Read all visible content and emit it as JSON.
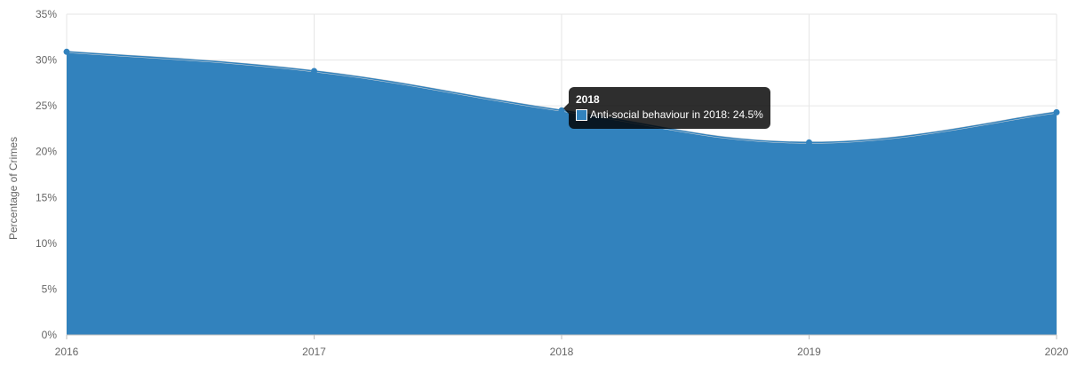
{
  "chart_data": {
    "type": "area",
    "x": [
      "2016",
      "2017",
      "2018",
      "2019",
      "2020"
    ],
    "series": [
      {
        "name": "Anti-social behaviour",
        "values": [
          30.9,
          28.8,
          24.5,
          21.0,
          24.3
        ]
      }
    ],
    "title": "",
    "xlabel": "",
    "ylabel": "Percentage of Crimes",
    "ylim": [
      0,
      35
    ],
    "y_ticks": [
      "0%",
      "5%",
      "10%",
      "15%",
      "20%",
      "25%",
      "30%",
      "35%"
    ],
    "grid": true,
    "fill_color": "#3282bd",
    "line_color": "#d9d9d9"
  },
  "tooltip": {
    "title": "2018",
    "text": "Anti-social behaviour in 2018: 24.5%"
  }
}
